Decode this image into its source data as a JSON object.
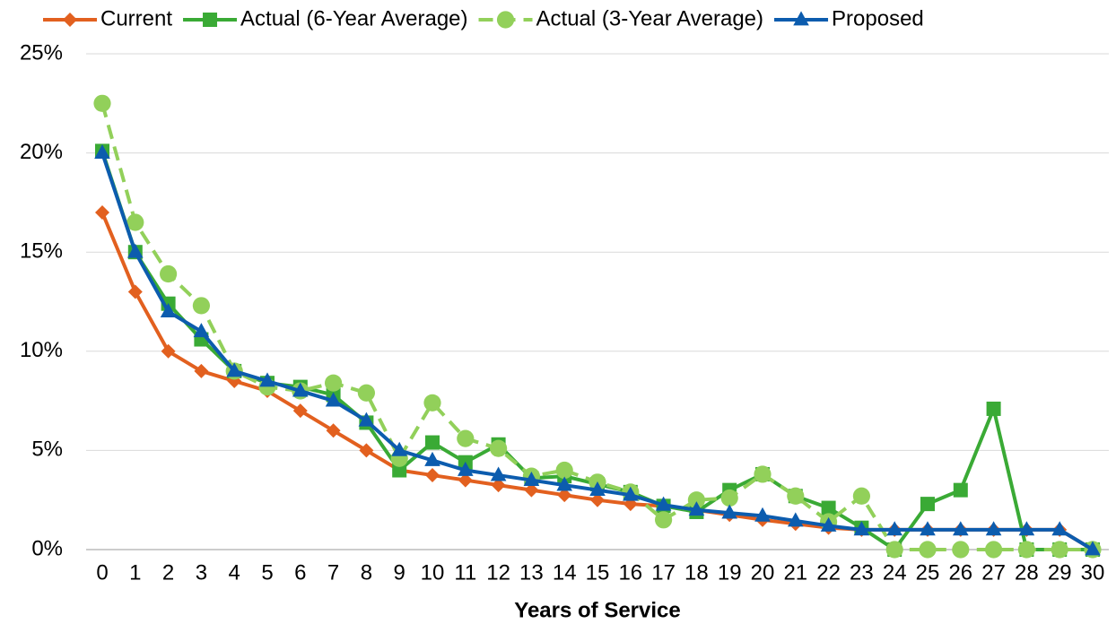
{
  "chart_data": {
    "type": "line",
    "x_label": "Years of Service",
    "x": [
      0,
      1,
      2,
      3,
      4,
      5,
      6,
      7,
      8,
      9,
      10,
      11,
      12,
      13,
      14,
      15,
      16,
      17,
      18,
      19,
      20,
      21,
      22,
      23,
      24,
      25,
      26,
      27,
      28,
      29,
      30
    ],
    "xlim": [
      0,
      30
    ],
    "xticks": [
      0,
      1,
      2,
      3,
      4,
      5,
      6,
      7,
      8,
      9,
      10,
      11,
      12,
      13,
      14,
      15,
      16,
      17,
      18,
      19,
      20,
      21,
      22,
      23,
      24,
      25,
      26,
      27,
      28,
      29,
      30
    ],
    "ylim": [
      0,
      25
    ],
    "yticks": [
      {
        "value": 0,
        "label": "0%"
      },
      {
        "value": 5,
        "label": "5%"
      },
      {
        "value": 10,
        "label": "10%"
      },
      {
        "value": 15,
        "label": "15%"
      },
      {
        "value": 20,
        "label": "20%"
      },
      {
        "value": 25,
        "label": "25%"
      }
    ],
    "grid": true,
    "legend": "top",
    "series": [
      {
        "name": "Current",
        "color": "#e2601f",
        "marker": "diamond",
        "dashed": false,
        "values": [
          17,
          13,
          10,
          9,
          8.5,
          8,
          7,
          6,
          5,
          4,
          3.75,
          3.5,
          3.25,
          3,
          2.75,
          2.5,
          2.3,
          2.2,
          2,
          1.75,
          1.5,
          1.3,
          1.1,
          1,
          1,
          1,
          1,
          1,
          1,
          1,
          0
        ]
      },
      {
        "name": "Actual (6-Year Average)",
        "color": "#3aaa35",
        "marker": "square",
        "dashed": false,
        "values": [
          20.1,
          15,
          12.4,
          10.6,
          9,
          8.4,
          8.2,
          7.8,
          6.4,
          4,
          5.4,
          4.4,
          5.3,
          3.6,
          3.7,
          3.3,
          2.9,
          2.2,
          1.9,
          3,
          3.8,
          2.7,
          2.1,
          1.1,
          0,
          2.3,
          3,
          7.1,
          0,
          0,
          0
        ]
      },
      {
        "name": "Actual (3-Year Average)",
        "color": "#92d05a",
        "marker": "circle",
        "dashed": true,
        "values": [
          22.5,
          16.5,
          13.9,
          12.3,
          9,
          8.2,
          8,
          8.4,
          7.9,
          4.6,
          7.4,
          5.6,
          5.1,
          3.7,
          4,
          3.4,
          2.9,
          1.5,
          2.5,
          2.6,
          3.8,
          2.7,
          1.4,
          2.7,
          0,
          0,
          0,
          0,
          0,
          0,
          0
        ]
      },
      {
        "name": "Proposed",
        "color": "#0c5cae",
        "marker": "triangle",
        "dashed": false,
        "values": [
          20,
          15,
          12,
          11,
          9,
          8.5,
          8,
          7.5,
          6.5,
          5,
          4.5,
          4,
          3.75,
          3.5,
          3.25,
          3,
          2.75,
          2.25,
          2,
          1.85,
          1.7,
          1.45,
          1.2,
          1,
          1,
          1,
          1,
          1,
          1,
          1,
          0
        ]
      }
    ]
  }
}
